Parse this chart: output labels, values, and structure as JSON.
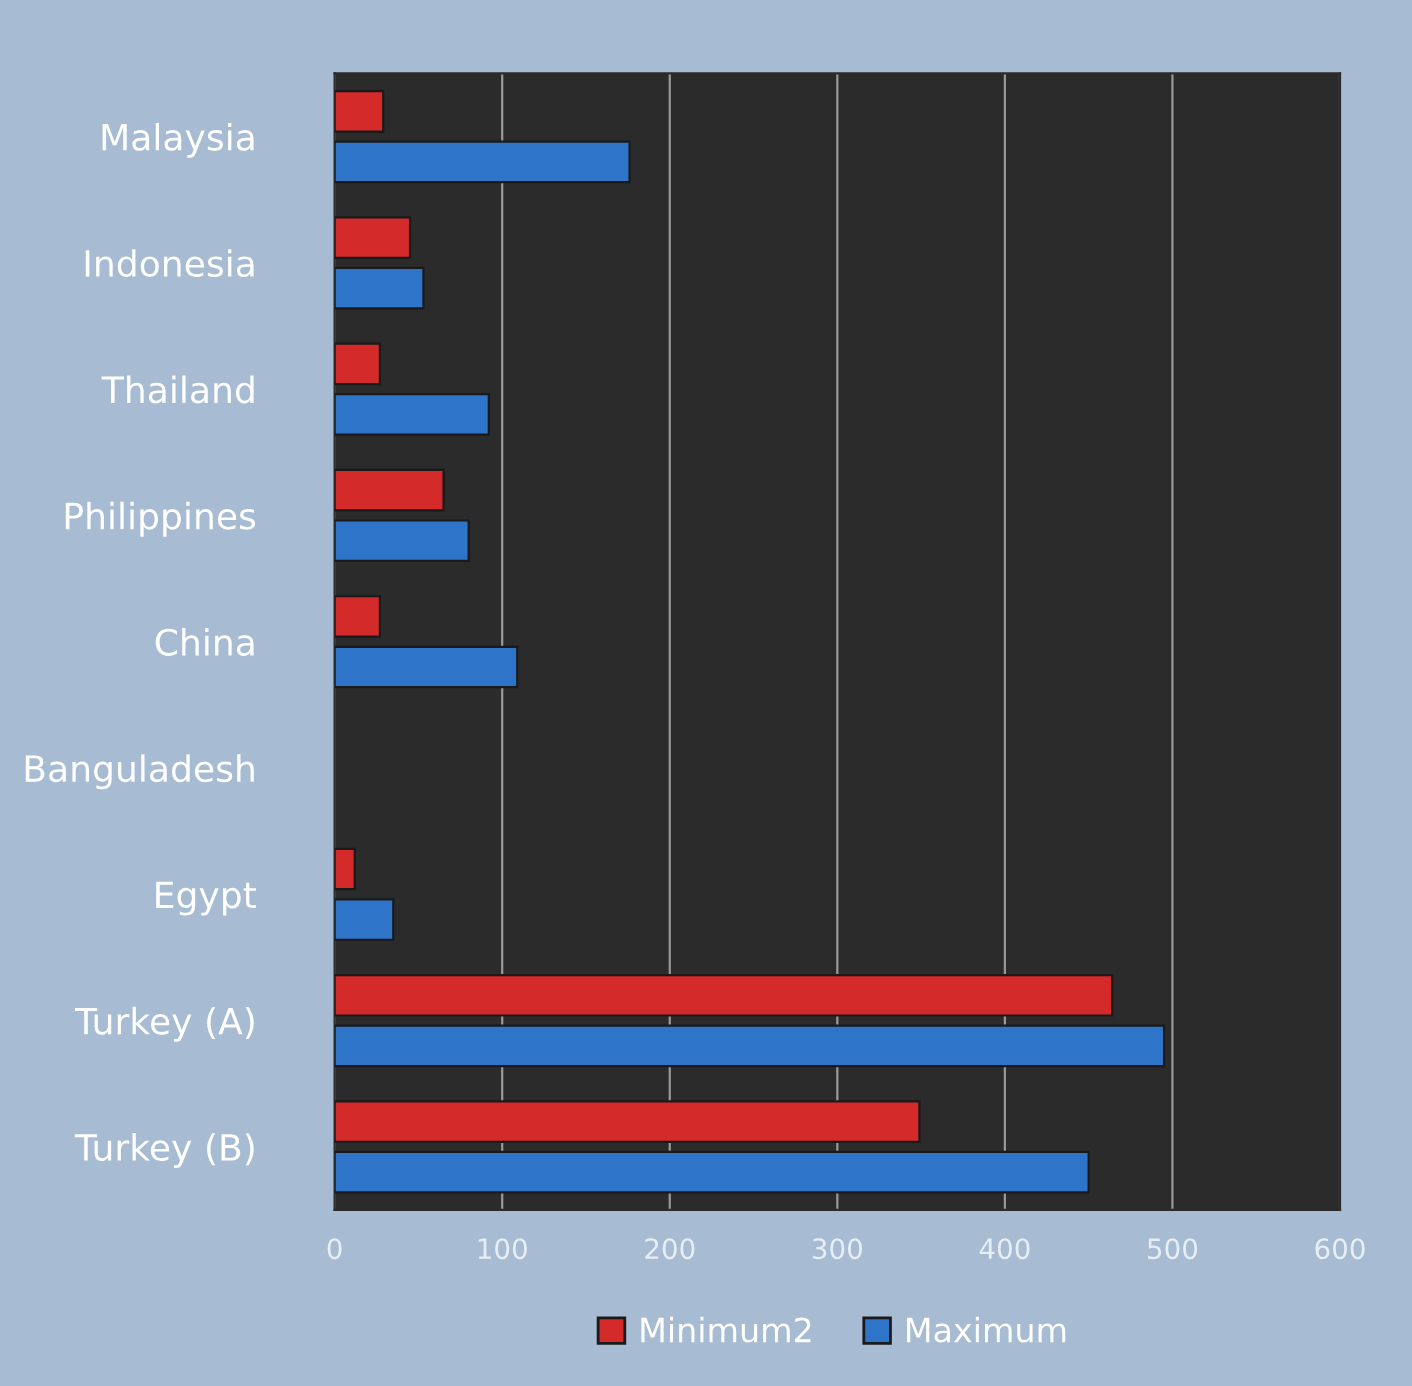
{
  "chart_data": {
    "type": "bar",
    "orientation": "horizontal",
    "categories": [
      "Malaysia",
      "Indonesia",
      "Thailand",
      "Philippines",
      "China",
      "Banguladesh",
      "Egypt",
      "Turkey (A)",
      "Turkey (B)"
    ],
    "series": [
      {
        "name": "Minimum2",
        "color": "#d42a2a",
        "values": [
          29,
          45,
          27,
          65,
          27,
          null,
          12,
          464,
          349
        ]
      },
      {
        "name": "Maximum",
        "color": "#2e75c9",
        "values": [
          176,
          53,
          92,
          80,
          109,
          null,
          35,
          495,
          450
        ]
      }
    ],
    "xlim": [
      0,
      600
    ],
    "xticks": [
      0,
      100,
      200,
      300,
      400,
      500,
      600
    ],
    "grid": "x",
    "legend": "bottom"
  }
}
